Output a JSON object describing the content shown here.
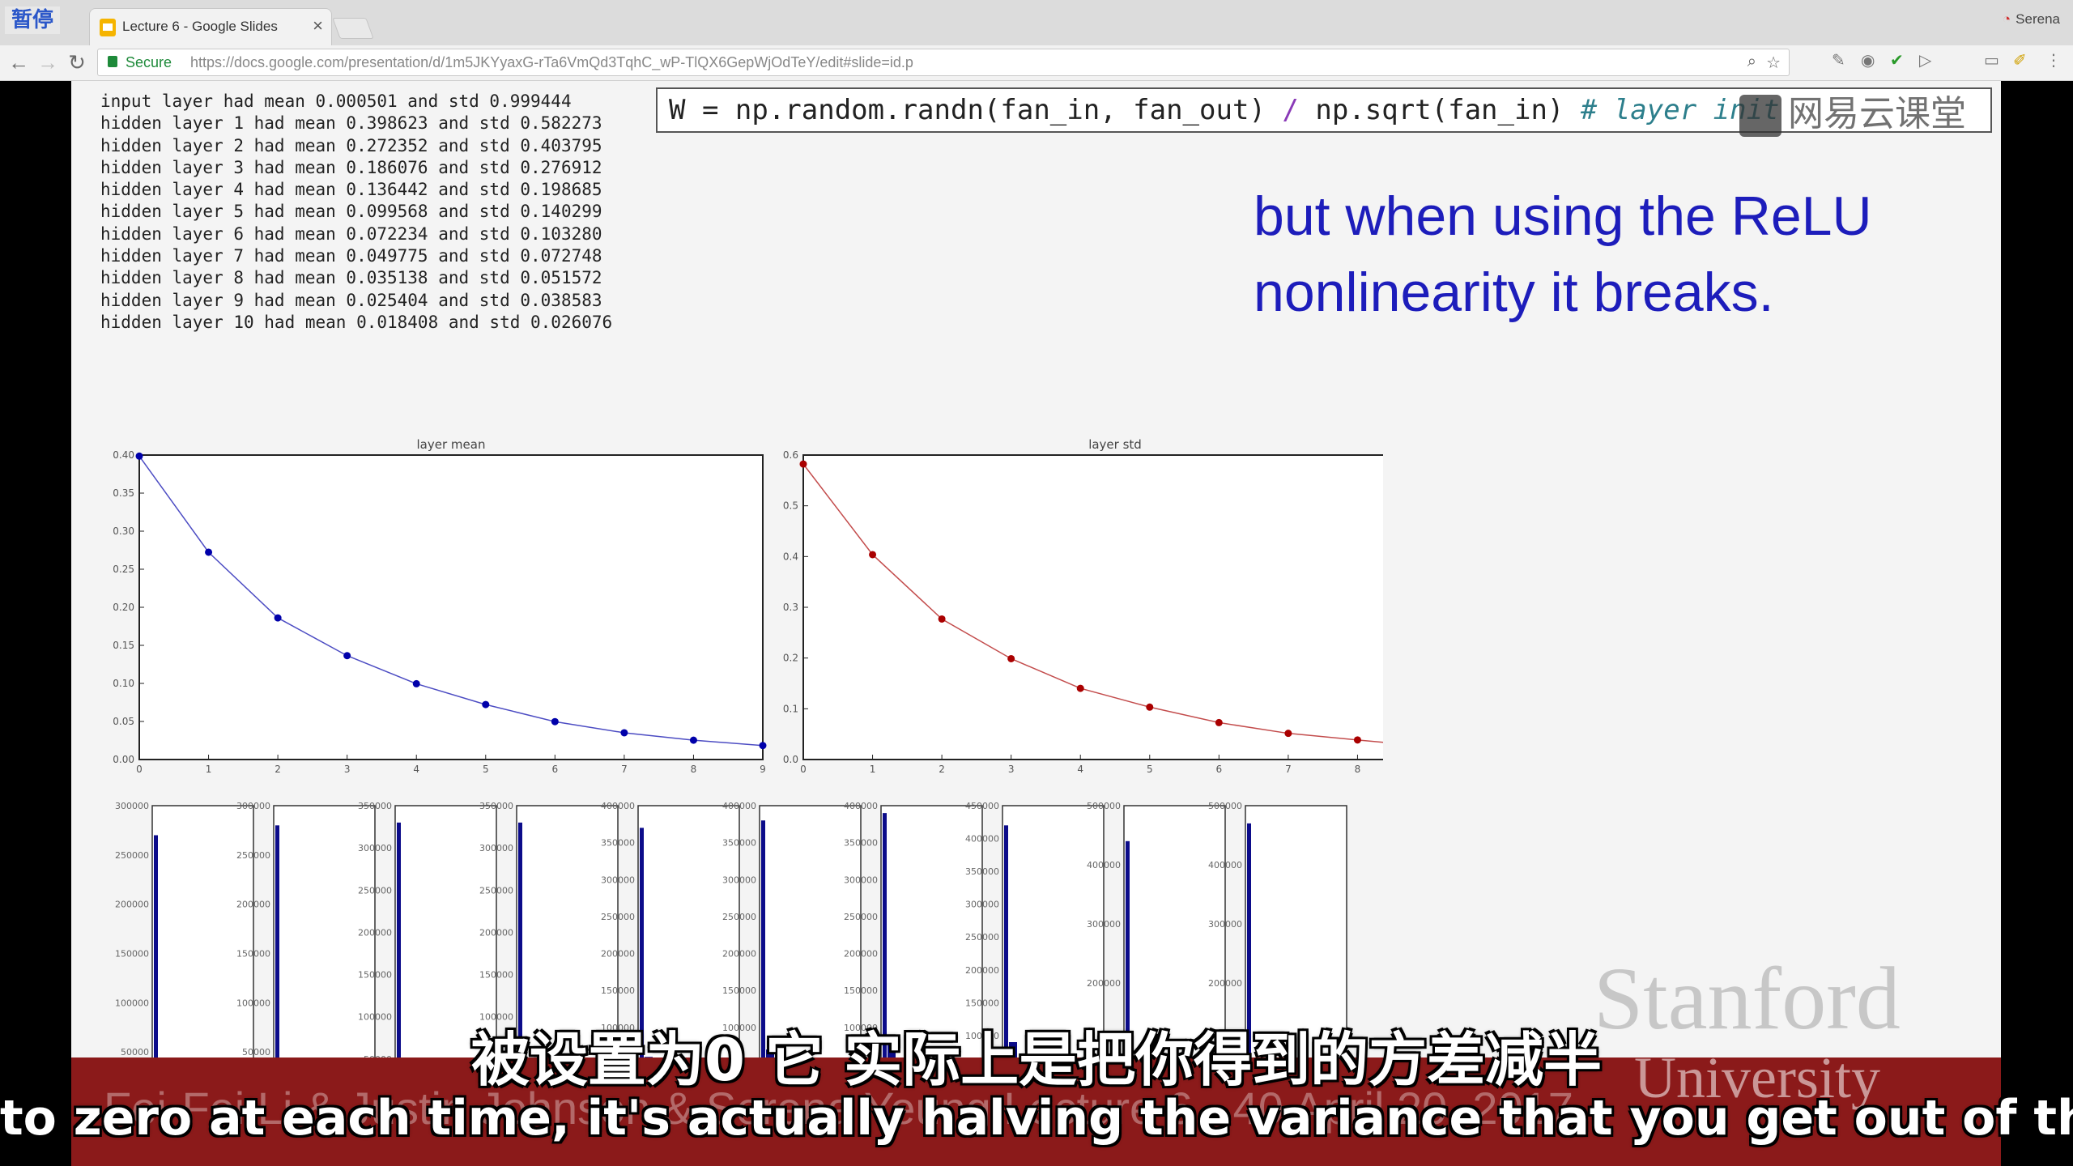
{
  "browser": {
    "pause_badge": "暂停",
    "tab_title": "Lecture 6 - Google Slides",
    "tab_close": "×",
    "profile_name": "Serena",
    "secure_label": "Secure",
    "url": "https://docs.google.com/presentation/d/1m5JKYyaxG-rTa6VmQd3TqhC_wP-TlQX6GepWjOdTeY/edit#slide=id.p"
  },
  "slide": {
    "console_lines": [
      "input layer had mean 0.000501 and std 0.999444",
      "hidden layer 1 had mean 0.398623 and std 0.582273",
      "hidden layer 2 had mean 0.272352 and std 0.403795",
      "hidden layer 3 had mean 0.186076 and std 0.276912",
      "hidden layer 4 had mean 0.136442 and std 0.198685",
      "hidden layer 5 had mean 0.099568 and std 0.140299",
      "hidden layer 6 had mean 0.072234 and std 0.103280",
      "hidden layer 7 had mean 0.049775 and std 0.072748",
      "hidden layer 8 had mean 0.035138 and std 0.051572",
      "hidden layer 9 had mean 0.025404 and std 0.038583",
      "hidden layer 10 had mean 0.018408 and std 0.026076"
    ],
    "code": {
      "statement": "W = np.random.randn(fan_in, fan_out) ",
      "operator": "/",
      "statement_rest": " np.sqrt(fan_in) ",
      "comment": "# layer init"
    },
    "headline": "but when using the ReLU nonlinearity it breaks.",
    "logo_watermark": "网易云课堂",
    "footer_text": "Fei-Fei Li & Justin Johnson & Serena Yeung        Lecture 6 - 40        April 20, 2017",
    "stanford_word": "Stanford",
    "university_word": "University",
    "colors": {
      "headline": "#1d1dbb",
      "footer": "#8b1a1a",
      "mean_line": "#0000aa",
      "std_line": "#aa0000",
      "hist_bar": "#0c0c8a"
    }
  },
  "chart_data": [
    {
      "type": "line",
      "title": "layer mean",
      "x": [
        0,
        1,
        2,
        3,
        4,
        5,
        6,
        7,
        8,
        9
      ],
      "values": [
        0.398623,
        0.272352,
        0.186076,
        0.136442,
        0.099568,
        0.072234,
        0.049775,
        0.035138,
        0.025404,
        0.018408
      ],
      "xlim": [
        0,
        9
      ],
      "ylim": [
        0.0,
        0.4
      ],
      "x_ticks": [
        "0",
        "1",
        "2",
        "3",
        "4",
        "5",
        "6",
        "7",
        "8",
        "9"
      ],
      "y_ticks": [
        "0.00",
        "0.05",
        "0.10",
        "0.15",
        "0.20",
        "0.25",
        "0.30",
        "0.35",
        "0.40"
      ],
      "color": "#0000aa"
    },
    {
      "type": "line",
      "title": "layer std",
      "x": [
        0,
        1,
        2,
        3,
        4,
        5,
        6,
        7,
        8,
        9
      ],
      "values": [
        0.582273,
        0.403795,
        0.276912,
        0.198685,
        0.140299,
        0.10328,
        0.072748,
        0.051572,
        0.038583,
        0.026076
      ],
      "xlim": [
        0,
        9
      ],
      "ylim": [
        0.0,
        0.6
      ],
      "x_ticks": [
        "0",
        "1",
        "2",
        "3",
        "4",
        "5",
        "6",
        "7",
        "8",
        "9"
      ],
      "y_ticks": [
        "0.0",
        "0.1",
        "0.2",
        "0.3",
        "0.4",
        "0.5",
        "0.6"
      ],
      "color": "#aa0000"
    },
    {
      "type": "bar",
      "title": "",
      "histograms": [
        {
          "y_ticks": [
            "50000",
            "100000",
            "150000",
            "200000",
            "250000",
            "300000"
          ],
          "ymax": 300000,
          "spike": 270000,
          "tail": [
            26000,
            18000,
            12000,
            7000,
            3000,
            1000
          ]
        },
        {
          "y_ticks": [
            "50000",
            "100000",
            "150000",
            "200000",
            "250000",
            "300000"
          ],
          "ymax": 300000,
          "spike": 280000,
          "tail": [
            30000,
            22000,
            14000,
            8000,
            3000,
            1000
          ]
        },
        {
          "y_ticks": [
            "50000",
            "100000",
            "150000",
            "200000",
            "250000",
            "300000",
            "350000"
          ],
          "ymax": 350000,
          "spike": 330000,
          "tail": [
            40000,
            28000,
            16000,
            8000,
            3000,
            1000
          ]
        },
        {
          "y_ticks": [
            "50000",
            "100000",
            "150000",
            "200000",
            "250000",
            "300000",
            "350000"
          ],
          "ymax": 350000,
          "spike": 330000,
          "tail": [
            45000,
            30000,
            16000,
            7000,
            2000,
            500
          ]
        },
        {
          "y_ticks": [
            "50000",
            "100000",
            "150000",
            "200000",
            "250000",
            "300000",
            "350000",
            "400000"
          ],
          "ymax": 400000,
          "spike": 370000,
          "tail": [
            60000,
            35000,
            16000,
            6000,
            2000,
            500
          ]
        },
        {
          "y_ticks": [
            "50000",
            "100000",
            "150000",
            "200000",
            "250000",
            "300000",
            "350000",
            "400000"
          ],
          "ymax": 400000,
          "spike": 380000,
          "tail": [
            70000,
            35000,
            14000,
            5000,
            1500,
            300
          ]
        },
        {
          "y_ticks": [
            "50000",
            "100000",
            "150000",
            "200000",
            "250000",
            "300000",
            "350000",
            "400000"
          ],
          "ymax": 400000,
          "spike": 390000,
          "tail": [
            80000,
            30000,
            10000,
            3000,
            800,
            200
          ]
        },
        {
          "y_ticks": [
            "50000",
            "100000",
            "150000",
            "200000",
            "250000",
            "300000",
            "350000",
            "400000",
            "450000"
          ],
          "ymax": 450000,
          "spike": 420000,
          "tail": [
            90000,
            28000,
            8000,
            2000,
            500,
            100
          ]
        },
        {
          "y_ticks": [
            "100000",
            "200000",
            "300000",
            "400000",
            "500000"
          ],
          "ymax": 500000,
          "spike": 440000,
          "tail": [
            60000,
            12000,
            3000,
            800,
            200,
            50
          ]
        },
        {
          "y_ticks": [
            "100000",
            "200000",
            "300000",
            "400000",
            "500000"
          ],
          "ymax": 500000,
          "spike": 470000,
          "tail": [
            20000,
            4000,
            1000,
            300,
            80,
            20
          ]
        }
      ]
    }
  ],
  "subtitles": {
    "zh": "被设置为0  它 实际上是把你得到的方差减半",
    "en": "to zero at each time, it's actually halving the variance that you get out of this."
  }
}
